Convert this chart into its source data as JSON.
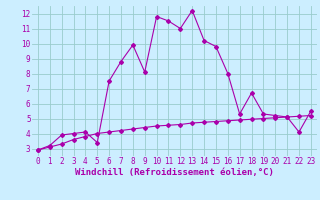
{
  "xlabel": "Windchill (Refroidissement éolien,°C)",
  "x_line1": [
    0,
    1,
    2,
    3,
    4,
    5,
    6,
    7,
    8,
    9,
    10,
    11,
    12,
    13,
    14,
    15,
    16,
    17,
    18,
    19,
    20,
    21,
    22,
    23
  ],
  "y_line1": [
    2.9,
    3.2,
    3.9,
    4.0,
    4.1,
    3.4,
    7.5,
    8.8,
    9.9,
    8.1,
    11.8,
    11.5,
    11.0,
    12.2,
    10.2,
    9.8,
    8.0,
    5.3,
    6.7,
    5.3,
    5.2,
    5.1,
    4.1,
    5.5
  ],
  "y_line2": [
    2.9,
    3.1,
    3.3,
    3.6,
    3.8,
    4.0,
    4.1,
    4.2,
    4.3,
    4.4,
    4.5,
    4.55,
    4.6,
    4.7,
    4.75,
    4.8,
    4.85,
    4.9,
    4.95,
    5.0,
    5.05,
    5.1,
    5.15,
    5.2
  ],
  "line_color": "#aa00aa",
  "bg_color": "#cceeff",
  "grid_color": "#99cccc",
  "ylim": [
    2.5,
    12.5
  ],
  "xlim": [
    -0.5,
    23.5
  ],
  "yticks": [
    3,
    4,
    5,
    6,
    7,
    8,
    9,
    10,
    11,
    12
  ],
  "xticks": [
    0,
    1,
    2,
    3,
    4,
    5,
    6,
    7,
    8,
    9,
    10,
    11,
    12,
    13,
    14,
    15,
    16,
    17,
    18,
    19,
    20,
    21,
    22,
    23
  ],
  "tick_fontsize": 5.5,
  "xlabel_fontsize": 6.5,
  "marker": "D",
  "marker_size": 2.0,
  "linewidth": 0.8
}
